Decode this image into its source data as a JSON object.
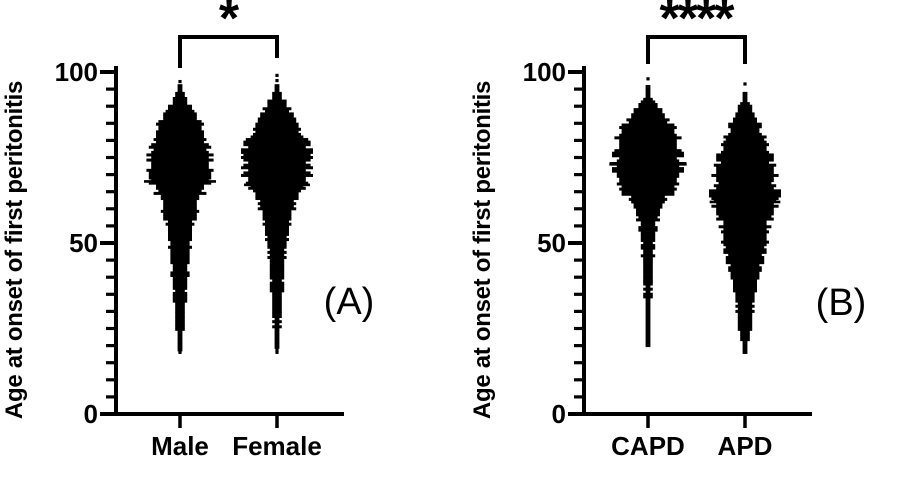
{
  "chart_data": [
    {
      "type": "beeswarm",
      "panel_label": "(A)",
      "ylabel": "Age at onset of first  peritonitis",
      "ylim": [
        0,
        100
      ],
      "yticks": [
        0,
        50,
        100
      ],
      "ytick_labels": [
        "0",
        "50",
        "100"
      ],
      "minor_tick_step": 5,
      "grid": false,
      "categories": [
        "Male",
        "Female"
      ],
      "significance": "*",
      "series": [
        {
          "name": "Male",
          "median": 68,
          "min": 18,
          "max": 97,
          "profile": [
            [
              18,
              1
            ],
            [
              20,
              2
            ],
            [
              23,
              3
            ],
            [
              26,
              4
            ],
            [
              30,
              5
            ],
            [
              34,
              6
            ],
            [
              38,
              7
            ],
            [
              42,
              8
            ],
            [
              46,
              9
            ],
            [
              50,
              11
            ],
            [
              54,
              13
            ],
            [
              57,
              15
            ],
            [
              60,
              17
            ],
            [
              62,
              19
            ],
            [
              65,
              25
            ],
            [
              68,
              31
            ],
            [
              70,
              33
            ],
            [
              73,
              32
            ],
            [
              76,
              31
            ],
            [
              79,
              28
            ],
            [
              82,
              25
            ],
            [
              85,
              20
            ],
            [
              88,
              14
            ],
            [
              91,
              8
            ],
            [
              93,
              5
            ],
            [
              95,
              2.5
            ],
            [
              96,
              1.5
            ]
          ],
          "outlier_dots": [
            [
              97.2,
              0
            ]
          ]
        },
        {
          "name": "Female",
          "median": 67,
          "min": 18,
          "max": 99,
          "profile": [
            [
              18,
              1
            ],
            [
              21,
              2
            ],
            [
              25,
              3
            ],
            [
              29,
              4
            ],
            [
              33,
              5
            ],
            [
              37,
              6
            ],
            [
              41,
              7
            ],
            [
              45,
              8
            ],
            [
              49,
              9
            ],
            [
              53,
              11
            ],
            [
              57,
              13
            ],
            [
              60,
              16
            ],
            [
              63,
              20
            ],
            [
              66,
              26
            ],
            [
              68,
              30
            ],
            [
              71,
              32
            ],
            [
              74,
              33
            ],
            [
              77,
              32
            ],
            [
              80,
              29
            ],
            [
              83,
              25
            ],
            [
              86,
              19
            ],
            [
              89,
              13
            ],
            [
              92,
              7
            ],
            [
              94,
              4
            ],
            [
              96,
              2
            ]
          ],
          "outlier_dots": [
            [
              97.5,
              0
            ],
            [
              99,
              0
            ]
          ]
        }
      ]
    },
    {
      "type": "beeswarm",
      "panel_label": "(B)",
      "ylabel": "Age at onset of first  peritonitis",
      "ylim": [
        0,
        100
      ],
      "yticks": [
        0,
        50,
        100
      ],
      "ytick_labels": [
        "0",
        "50",
        "100"
      ],
      "minor_tick_step": 5,
      "grid": false,
      "categories": [
        "CAPD",
        "APD"
      ],
      "significance": "****",
      "series": [
        {
          "name": "CAPD",
          "median": 73,
          "min": 20,
          "max": 98,
          "profile": [
            [
              20,
              1.5
            ],
            [
              22,
              2
            ],
            [
              25,
              2.5
            ],
            [
              29,
              3
            ],
            [
              33,
              3.5
            ],
            [
              37,
              4
            ],
            [
              41,
              4.5
            ],
            [
              45,
              5
            ],
            [
              49,
              6
            ],
            [
              52,
              7
            ],
            [
              55,
              9
            ],
            [
              58,
              11
            ],
            [
              61,
              15
            ],
            [
              64,
              22
            ],
            [
              67,
              28
            ],
            [
              70,
              32
            ],
            [
              72,
              34
            ],
            [
              75,
              33
            ],
            [
              78,
              32
            ],
            [
              81,
              30
            ],
            [
              84,
              25
            ],
            [
              87,
              17
            ],
            [
              90,
              10
            ],
            [
              92,
              4
            ],
            [
              94,
              2
            ],
            [
              96,
              1.5
            ]
          ],
          "outlier_dots": [
            [
              98,
              0
            ]
          ]
        },
        {
          "name": "APD",
          "median": 62,
          "min": 18,
          "max": 96,
          "profile": [
            [
              18,
              1.5
            ],
            [
              20,
              3
            ],
            [
              22,
              5
            ],
            [
              24,
              6
            ],
            [
              27,
              7
            ],
            [
              30,
              8
            ],
            [
              33,
              9
            ],
            [
              36,
              11
            ],
            [
              39,
              13
            ],
            [
              42,
              15
            ],
            [
              45,
              17
            ],
            [
              48,
              21
            ],
            [
              51,
              20
            ],
            [
              54,
              22
            ],
            [
              57,
              26
            ],
            [
              60,
              31
            ],
            [
              63,
              30
            ],
            [
              66,
              31
            ],
            [
              69,
              30
            ],
            [
              72,
              28
            ],
            [
              75,
              25
            ],
            [
              78,
              23
            ],
            [
              81,
              19
            ],
            [
              84,
              15
            ],
            [
              87,
              10
            ],
            [
              90,
              6
            ],
            [
              92,
              3
            ],
            [
              94,
              1.5
            ]
          ],
          "outlier_dots": [
            [
              96.5,
              0
            ]
          ]
        }
      ]
    }
  ]
}
